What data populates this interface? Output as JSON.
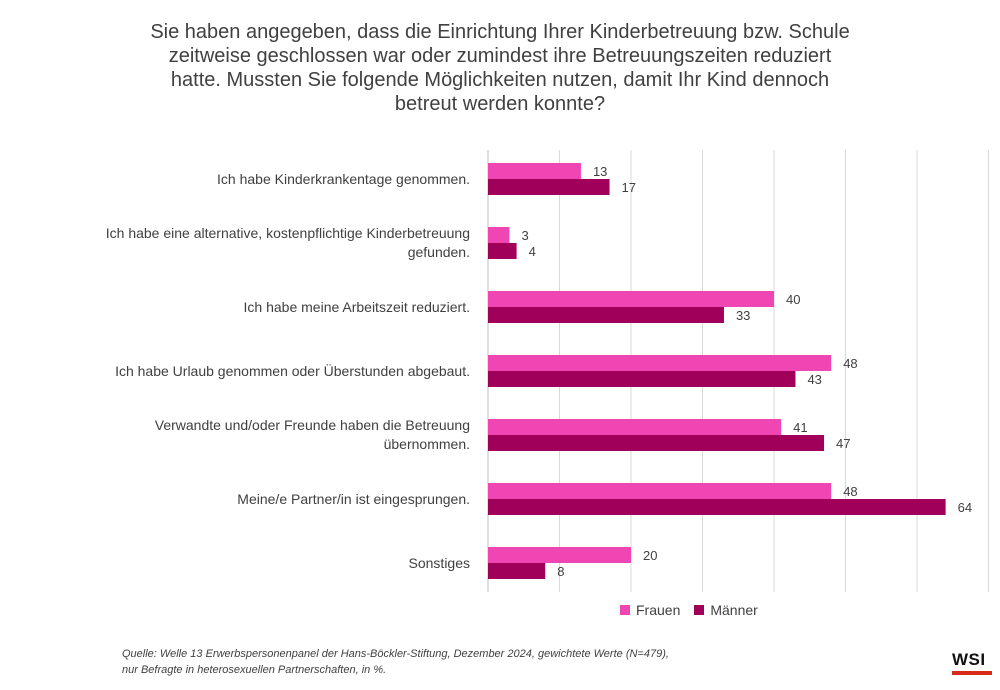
{
  "chart_data": {
    "type": "bar",
    "orientation": "horizontal",
    "title_lines": [
      "Sie haben angegeben, dass die Einrichtung Ihrer Kinderbetreuung bzw. Schule",
      "zeitweise geschlossen war oder zumindest ihre Betreuungszeiten reduziert",
      "hatte. Mussten Sie folgende Möglichkeiten nutzen, damit Ihr Kind dennoch",
      "betreut werden konnte?"
    ],
    "categories": [
      [
        "Ich habe Kinderkrankentage genommen."
      ],
      [
        "Ich habe eine alternative, kostenpflichtige Kinderbetreuung",
        "gefunden."
      ],
      [
        "Ich habe meine Arbeitszeit reduziert."
      ],
      [
        "Ich habe Urlaub genommen oder Überstunden abgebaut."
      ],
      [
        "Verwandte und/oder Freunde haben die Betreuung",
        "übernommen."
      ],
      [
        "Meine/e Partner/in ist eingesprungen."
      ],
      [
        "Sonstiges"
      ]
    ],
    "series": [
      {
        "name": "Frauen",
        "color": "#f046b4",
        "values": [
          13,
          3,
          40,
          48,
          41,
          48,
          20
        ]
      },
      {
        "name": "Männer",
        "color": "#a0005a",
        "values": [
          17,
          4,
          33,
          43,
          47,
          64,
          8
        ]
      }
    ],
    "xlim": [
      0,
      70
    ],
    "grid_step": 10,
    "grid": true,
    "legend_position": "bottom",
    "data_labels": true
  },
  "source_lines": [
    "Quelle: Welle 13 Erwerbspersonenpanel der Hans-Böckler-Stiftung, Dezember 2024, gewichtete Werte (N=479),",
    "nur Befragte in heterosexuellen Partnerschaften, in %."
  ],
  "logo_text": "WSI"
}
